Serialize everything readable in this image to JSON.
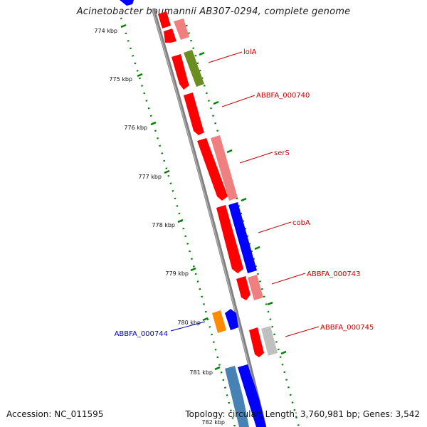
{
  "title": "Acinetobacter baumannii AB307-0294, complete genome",
  "footer": {
    "accession": "Accession: NC_011595",
    "topology": "Topology: circular; Length: 3,760,981 bp; Genes: 3,542"
  },
  "colors": {
    "gene_red": "#ff0000",
    "gene_pink": "#f08080",
    "gene_blue": "#0000ff",
    "gene_olive": "#6b8e23",
    "gene_orange": "#ff8c00",
    "gene_gray": "#c0c0c0",
    "gene_steelblue": "#4682b4",
    "backbone": "#808080",
    "tick_green": "#008000",
    "label_red": "#cc0000",
    "label_blue": "#0000cc"
  },
  "kbp_ticks": [
    "774 kbp",
    "775 kbp",
    "776 kbp",
    "777 kbp",
    "778 kbp",
    "779 kbp",
    "780 kbp",
    "781 kbp",
    "782 kbp"
  ],
  "gene_labels": [
    {
      "text": "lolA",
      "color": "red"
    },
    {
      "text": "ABBFA_000740",
      "color": "red"
    },
    {
      "text": "serS",
      "color": "red"
    },
    {
      "text": "cobA",
      "color": "red"
    },
    {
      "text": "ABBFA_000743",
      "color": "red"
    },
    {
      "text": "ABBFA_000744",
      "color": "blue"
    },
    {
      "text": "ABBFA_000745",
      "color": "red"
    }
  ]
}
